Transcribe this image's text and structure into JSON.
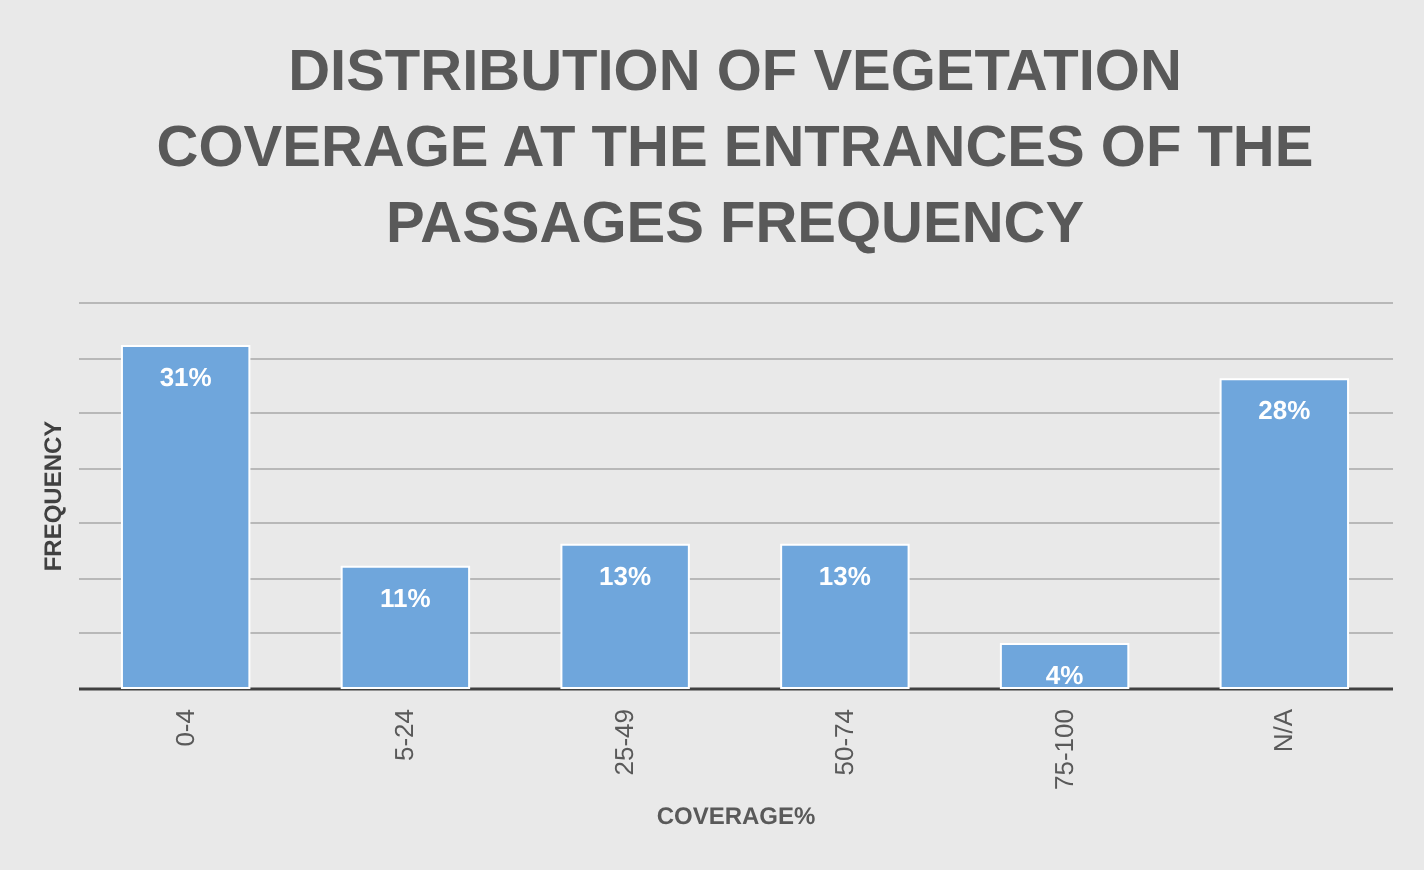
{
  "chart_data": {
    "type": "bar",
    "title": [
      "DISTRIBUTION OF VEGETATION",
      "COVERAGE AT THE ENTRANCES OF THE",
      "PASSAGES FREQUENCY"
    ],
    "xlabel": "COVERAGE%",
    "ylabel": "FREQUENCY",
    "categories": [
      "0-4",
      "5-24",
      "25-49",
      "50-74",
      "75-100",
      "N/A"
    ],
    "values": [
      31,
      11,
      13,
      13,
      4,
      28
    ],
    "value_labels": [
      "31%",
      "11%",
      "13%",
      "13%",
      "4%",
      "28%"
    ],
    "color": "#6fa6dc",
    "tick_labels": "x",
    "grid": "y"
  }
}
